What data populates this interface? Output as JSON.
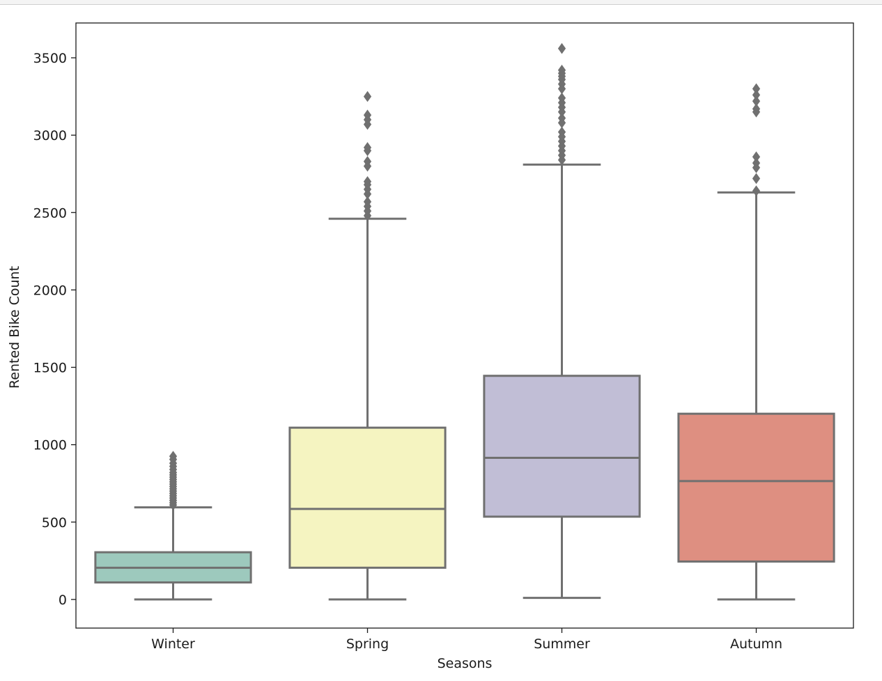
{
  "chart_data": {
    "type": "box",
    "title": "",
    "xlabel": "Seasons",
    "ylabel": "Rented Bike Count",
    "ylim": [
      -185,
      3725
    ],
    "yticks": [
      0,
      500,
      1000,
      1500,
      2000,
      2500,
      3000,
      3500
    ],
    "ytick_labels": [
      "0",
      "500",
      "1000",
      "1500",
      "2000",
      "2500",
      "3000",
      "3500"
    ],
    "grid": false,
    "legend": "none",
    "categories": [
      "Winter",
      "Spring",
      "Summer",
      "Autumn"
    ],
    "colors": [
      "#9dc9bd",
      "#f5f4c1",
      "#c1bed6",
      "#de8f81"
    ],
    "line_color": "#707070",
    "series": [
      {
        "name": "Winter",
        "whisker_low": 0,
        "q1": 110,
        "median": 205,
        "q3": 305,
        "whisker_high": 595,
        "outliers": [
          610,
          625,
          640,
          655,
          670,
          685,
          700,
          715,
          730,
          745,
          760,
          775,
          790,
          805,
          820,
          840,
          860,
          880,
          905,
          925
        ]
      },
      {
        "name": "Spring",
        "whisker_low": 0,
        "q1": 205,
        "median": 585,
        "q3": 1110,
        "whisker_high": 2460,
        "outliers": [
          2480,
          2510,
          2540,
          2570,
          2620,
          2650,
          2680,
          2700,
          2800,
          2830,
          2900,
          2920,
          3070,
          3100,
          3130,
          3250
        ]
      },
      {
        "name": "Summer",
        "whisker_low": 10,
        "q1": 535,
        "median": 915,
        "q3": 1445,
        "whisker_high": 2810,
        "outliers": [
          2840,
          2870,
          2900,
          2930,
          2960,
          2990,
          3020,
          3080,
          3110,
          3150,
          3180,
          3210,
          3240,
          3300,
          3330,
          3360,
          3380,
          3400,
          3420,
          3560
        ]
      },
      {
        "name": "Autumn",
        "whisker_low": 0,
        "q1": 245,
        "median": 765,
        "q3": 1200,
        "whisker_high": 2630,
        "outliers": [
          2640,
          2720,
          2790,
          2820,
          2860,
          3150,
          3170,
          3220,
          3260,
          3300
        ]
      }
    ]
  }
}
